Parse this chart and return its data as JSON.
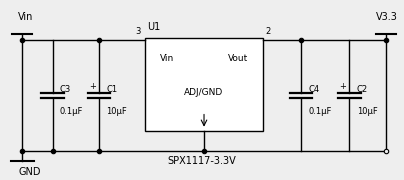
{
  "bg_color": "#eeeeee",
  "line_color": "#000000",
  "text_color": "#000000",
  "ic_label": "U1",
  "ic_vin_label": "Vin",
  "ic_vout_label": "Vout",
  "ic_adj_label": "ADJ/GND",
  "vin_label": "Vin",
  "v33_label": "V3.3",
  "gnd_label": "GND",
  "spx_label": "SPX1117-3.3V",
  "c1_label": "C1",
  "c1_val": "10μF",
  "c2_label": "C2",
  "c2_val": "10μF",
  "c3_label": "C3",
  "c3_val": "0.1μF",
  "c4_label": "C4",
  "c4_val": "0.1μF",
  "figsize": [
    4.04,
    1.8
  ],
  "dpi": 100,
  "lw": 1.0
}
